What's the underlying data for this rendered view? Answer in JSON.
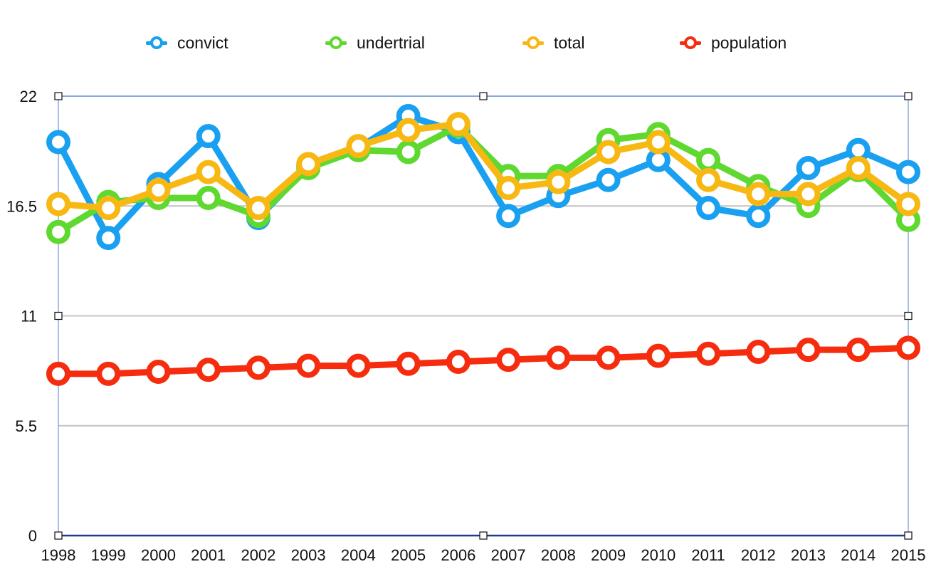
{
  "chart_data": {
    "type": "line",
    "title": "",
    "xlabel": "",
    "ylabel": "",
    "ylim": [
      0,
      22
    ],
    "y_ticks": [
      0,
      5.5,
      11,
      16.5,
      22
    ],
    "y_tick_labels": [
      "0",
      "5.5",
      "11",
      "16.5",
      "22"
    ],
    "grid": true,
    "legend_position": "top",
    "categories": [
      "1998",
      "1999",
      "2000",
      "2001",
      "2002",
      "2003",
      "2004",
      "2005",
      "2006",
      "2007",
      "2008",
      "2009",
      "2010",
      "2011",
      "2012",
      "2013",
      "2014",
      "2015"
    ],
    "series": [
      {
        "name": "convict",
        "color": "#1aa0f0",
        "values": [
          19.7,
          14.9,
          17.6,
          20.0,
          15.9,
          18.5,
          19.4,
          21.0,
          20.2,
          16.0,
          17.0,
          17.8,
          18.8,
          16.4,
          16.0,
          18.4,
          19.3,
          18.2
        ]
      },
      {
        "name": "undertrial",
        "color": "#5fd82f",
        "values": [
          15.2,
          16.7,
          16.9,
          16.9,
          16.0,
          18.4,
          19.3,
          19.2,
          20.5,
          18.0,
          18.0,
          19.8,
          20.1,
          18.8,
          17.5,
          16.5,
          18.3,
          15.8
        ]
      },
      {
        "name": "total",
        "color": "#f8b814",
        "values": [
          16.6,
          16.4,
          17.3,
          18.2,
          16.4,
          18.6,
          19.5,
          20.3,
          20.6,
          17.4,
          17.7,
          19.2,
          19.7,
          17.8,
          17.1,
          17.1,
          18.4,
          16.6
        ]
      },
      {
        "name": "population",
        "color": "#f52c0e",
        "values": [
          8.1,
          8.1,
          8.2,
          8.3,
          8.4,
          8.5,
          8.5,
          8.6,
          8.7,
          8.8,
          8.9,
          8.9,
          9.0,
          9.1,
          9.2,
          9.3,
          9.3,
          9.4
        ]
      }
    ]
  }
}
